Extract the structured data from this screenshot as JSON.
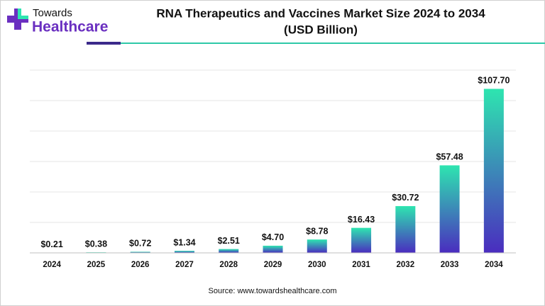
{
  "brand": {
    "line1": "Towards",
    "line2": "Healthcare"
  },
  "chart_data": {
    "type": "bar",
    "title": "RNA Therapeutics and Vaccines Market Size 2024 to 2034",
    "subtitle": "(USD Billion)",
    "categories": [
      "2024",
      "2025",
      "2026",
      "2027",
      "2028",
      "2029",
      "2030",
      "2031",
      "2032",
      "2033",
      "2034"
    ],
    "values": [
      0.21,
      0.38,
      0.72,
      1.34,
      2.51,
      4.7,
      8.78,
      16.43,
      30.72,
      57.48,
      107.7
    ],
    "value_labels": [
      "$0.21",
      "$0.38",
      "$0.72",
      "$1.34",
      "$2.51",
      "$4.70",
      "$8.78",
      "$16.43",
      "$30.72",
      "$57.48",
      "$107.70"
    ],
    "colors": [
      "#2ee5b0",
      "#4a2cbf"
    ],
    "ylim": [
      0,
      120
    ],
    "yticks": [
      0,
      20,
      40,
      60,
      80,
      100,
      120
    ],
    "grid": true
  },
  "source": "Source: www.towardshealthcare.com"
}
